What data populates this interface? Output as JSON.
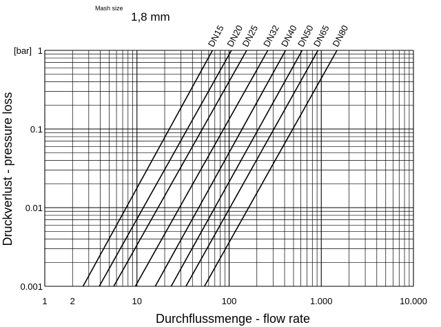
{
  "chart_data": {
    "type": "line",
    "title": "",
    "mesh_label": "Mash size",
    "mesh_value": "1,8 mm",
    "xlabel": "Durchflussmenge - flow rate",
    "ylabel": "Druckverlust - pressure loss",
    "x_scale": "log",
    "y_scale": "log",
    "xlim": [
      1,
      10000
    ],
    "ylim": [
      0.001,
      1
    ],
    "x_ticks": [
      {
        "value": 1,
        "label": "1"
      },
      {
        "value": 2,
        "label": "2"
      },
      {
        "value": 10,
        "label": "10"
      },
      {
        "value": 100,
        "label": "100"
      },
      {
        "value": 1000,
        "label": "1.000"
      },
      {
        "value": 10000,
        "label": "10.000"
      }
    ],
    "y_ticks": [
      {
        "value": 1,
        "label": "1"
      },
      {
        "value": 0.1,
        "label": "0.1"
      },
      {
        "value": 0.01,
        "label": "0.01"
      },
      {
        "value": 0.001,
        "label": "0.001"
      }
    ],
    "y_unit_label": "[bar]",
    "grid": true,
    "series": [
      {
        "name": "DN15",
        "points": [
          [
            2.6,
            0.001
          ],
          [
            66,
            1
          ]
        ]
      },
      {
        "name": "DN20",
        "points": [
          [
            3.9,
            0.001
          ],
          [
            106,
            1
          ]
        ]
      },
      {
        "name": "DN25",
        "points": [
          [
            5.6,
            0.001
          ],
          [
            155,
            1
          ]
        ]
      },
      {
        "name": "DN32",
        "points": [
          [
            9.6,
            0.001
          ],
          [
            263,
            1
          ]
        ]
      },
      {
        "name": "DN40",
        "points": [
          [
            15.8,
            0.001
          ],
          [
            410,
            1
          ]
        ]
      },
      {
        "name": "DN50",
        "points": [
          [
            23.5,
            0.001
          ],
          [
            620,
            1
          ]
        ]
      },
      {
        "name": "DN65",
        "points": [
          [
            34,
            0.001
          ],
          [
            920,
            1
          ]
        ]
      },
      {
        "name": "DN80",
        "points": [
          [
            54,
            0.001
          ],
          [
            1480,
            1
          ]
        ]
      }
    ]
  }
}
